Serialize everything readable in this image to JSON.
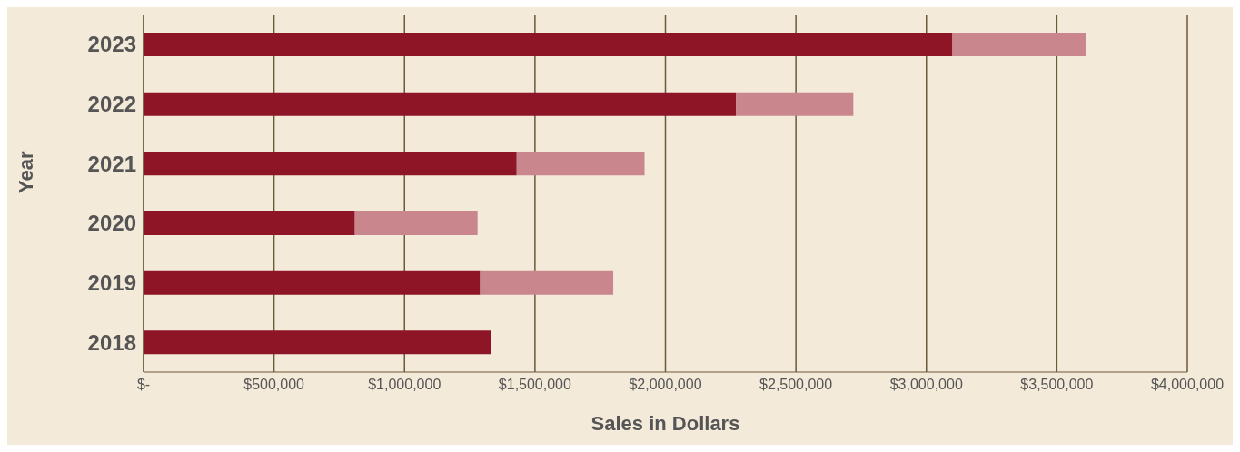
{
  "chart_data": {
    "type": "bar",
    "orientation": "horizontal",
    "stacked": true,
    "xlabel": "Sales in Dollars",
    "ylabel": "Year",
    "categories": [
      "2023",
      "2022",
      "2021",
      "2020",
      "2019",
      "2018"
    ],
    "series": [
      {
        "color": "#8e1526",
        "values": [
          3100000,
          2270000,
          1430000,
          810000,
          1290000,
          1330000
        ]
      },
      {
        "color": "#c9868c",
        "values": [
          510000,
          450000,
          490000,
          470000,
          510000,
          null
        ]
      }
    ],
    "xlim": [
      0,
      4000000
    ],
    "xticks": [
      {
        "value": 0,
        "label": "$-"
      },
      {
        "value": 500000,
        "label": "$500,000"
      },
      {
        "value": 1000000,
        "label": "$1,000,000"
      },
      {
        "value": 1500000,
        "label": "$1,500,000"
      },
      {
        "value": 2000000,
        "label": "$2,000,000"
      },
      {
        "value": 2500000,
        "label": "$2,500,000"
      },
      {
        "value": 3000000,
        "label": "$3,000,000"
      },
      {
        "value": 3500000,
        "label": "$3,500,000"
      },
      {
        "value": 4000000,
        "label": "$4,000,000"
      }
    ],
    "grid": "x"
  }
}
